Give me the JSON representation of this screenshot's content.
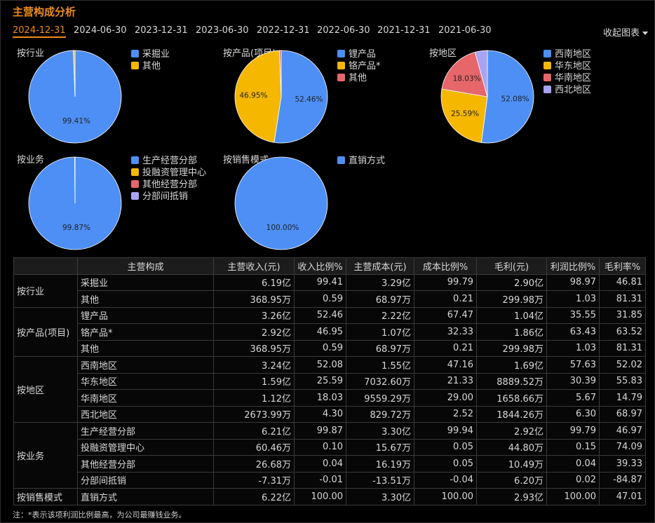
{
  "header": {
    "title": "主营构成分析",
    "collapse_label": "收起图表"
  },
  "tabs": [
    {
      "label": "2024-12-31",
      "active": true
    },
    {
      "label": "2024-06-30",
      "active": false
    },
    {
      "label": "2023-12-31",
      "active": false
    },
    {
      "label": "2023-06-30",
      "active": false
    },
    {
      "label": "2022-12-31",
      "active": false
    },
    {
      "label": "2022-06-30",
      "active": false
    },
    {
      "label": "2021-12-31",
      "active": false
    },
    {
      "label": "2021-06-30",
      "active": false
    }
  ],
  "colors": {
    "blue": "#4d8ff5",
    "yellow": "#f5b700",
    "red": "#e6666a",
    "purple": "#a9a4f2",
    "accent": "#f08a1e"
  },
  "chart_data": [
    {
      "type": "pie",
      "title": "按行业",
      "slices": [
        {
          "label": "采掘业",
          "value": 99.41,
          "color": "#4d8ff5",
          "data_label": "99.41%"
        },
        {
          "label": "其他",
          "value": 0.59,
          "color": "#f5b700",
          "data_label": ""
        }
      ]
    },
    {
      "type": "pie",
      "title": "按产品(项目)",
      "slices": [
        {
          "label": "锂产品",
          "value": 52.46,
          "color": "#4d8ff5",
          "data_label": "52.46%"
        },
        {
          "label": "铬产品*",
          "value": 46.95,
          "color": "#f5b700",
          "data_label": "46.95%"
        },
        {
          "label": "其他",
          "value": 0.59,
          "color": "#e6666a",
          "data_label": ""
        }
      ]
    },
    {
      "type": "pie",
      "title": "按地区",
      "slices": [
        {
          "label": "西南地区",
          "value": 52.08,
          "color": "#4d8ff5",
          "data_label": "52.08%"
        },
        {
          "label": "华东地区",
          "value": 25.59,
          "color": "#f5b700",
          "data_label": "25.59%"
        },
        {
          "label": "华南地区",
          "value": 18.03,
          "color": "#e6666a",
          "data_label": "18.03%"
        },
        {
          "label": "西北地区",
          "value": 4.3,
          "color": "#a9a4f2",
          "data_label": ""
        }
      ]
    },
    {
      "type": "pie",
      "title": "按业务",
      "slices": [
        {
          "label": "生产经营分部",
          "value": 99.87,
          "color": "#4d8ff5",
          "data_label": "99.87%"
        },
        {
          "label": "投融资管理中心",
          "value": 0.1,
          "color": "#f5b700",
          "data_label": ""
        },
        {
          "label": "其他经营分部",
          "value": 0.04,
          "color": "#e6666a",
          "data_label": ""
        },
        {
          "label": "分部间抵销",
          "value": -0.01,
          "color": "#a9a4f2",
          "data_label": ""
        }
      ]
    },
    {
      "type": "pie",
      "title": "按销售模式",
      "slices": [
        {
          "label": "直销方式",
          "value": 100.0,
          "color": "#4d8ff5",
          "data_label": "100.00%"
        }
      ]
    }
  ],
  "table": {
    "headers": [
      "",
      "主营构成",
      "主营收入(元)",
      "收入比例%",
      "主营成本(元)",
      "成本比例%",
      "毛利(元)",
      "利润比例%",
      "毛利率%"
    ],
    "groups": [
      {
        "category": "按行业",
        "rows": [
          [
            "采掘业",
            "6.19亿",
            "99.41",
            "3.29亿",
            "99.79",
            "2.90亿",
            "98.97",
            "46.81"
          ],
          [
            "其他",
            "368.95万",
            "0.59",
            "68.97万",
            "0.21",
            "299.98万",
            "1.03",
            "81.31"
          ]
        ]
      },
      {
        "category": "按产品(项目)",
        "rows": [
          [
            "锂产品",
            "3.26亿",
            "52.46",
            "2.22亿",
            "67.47",
            "1.04亿",
            "35.55",
            "31.85"
          ],
          [
            "铬产品*",
            "2.92亿",
            "46.95",
            "1.07亿",
            "32.33",
            "1.86亿",
            "63.43",
            "63.52"
          ],
          [
            "其他",
            "368.95万",
            "0.59",
            "68.97万",
            "0.21",
            "299.98万",
            "1.03",
            "81.31"
          ]
        ]
      },
      {
        "category": "按地区",
        "rows": [
          [
            "西南地区",
            "3.24亿",
            "52.08",
            "1.55亿",
            "47.16",
            "1.69亿",
            "57.63",
            "52.02"
          ],
          [
            "华东地区",
            "1.59亿",
            "25.59",
            "7032.60万",
            "21.33",
            "8889.52万",
            "30.39",
            "55.83"
          ],
          [
            "华南地区",
            "1.12亿",
            "18.03",
            "9559.29万",
            "29.00",
            "1658.66万",
            "5.67",
            "14.79"
          ],
          [
            "西北地区",
            "2673.99万",
            "4.30",
            "829.72万",
            "2.52",
            "1844.26万",
            "6.30",
            "68.97"
          ]
        ]
      },
      {
        "category": "按业务",
        "rows": [
          [
            "生产经营分部",
            "6.21亿",
            "99.87",
            "3.30亿",
            "99.94",
            "2.92亿",
            "99.79",
            "46.97"
          ],
          [
            "投融资管理中心",
            "60.46万",
            "0.10",
            "15.67万",
            "0.05",
            "44.80万",
            "0.15",
            "74.09"
          ],
          [
            "其他经营分部",
            "26.68万",
            "0.04",
            "16.19万",
            "0.05",
            "10.49万",
            "0.04",
            "39.33"
          ],
          [
            "分部间抵销",
            "-7.31万",
            "-0.01",
            "-13.51万",
            "-0.04",
            "6.20万",
            "0.02",
            "-84.87"
          ]
        ]
      },
      {
        "category": "按销售模式",
        "rows": [
          [
            "直销方式",
            "6.22亿",
            "100.00",
            "3.30亿",
            "100.00",
            "2.93亿",
            "100.00",
            "47.01"
          ]
        ]
      }
    ]
  },
  "footnote": "注：*表示该项利润比例最高，为公司最赚钱业务。"
}
